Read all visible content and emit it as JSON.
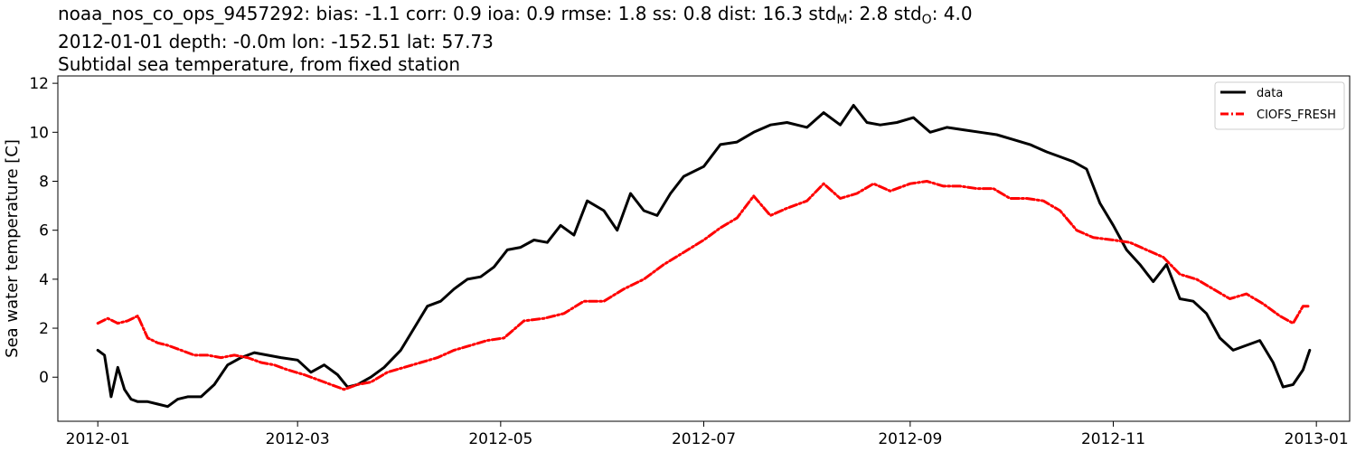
{
  "title": {
    "line1_prefix": "noaa_nos_co_ops_9457292: bias: -1.1  corr: 0.9  ioa: 0.9  rmse: 1.8  ss: 0.8  dist: 16.3  std",
    "line1_sub_m": "M",
    "line1_mid": ": 2.8  std",
    "line1_sub_o": "O",
    "line1_end": ": 4.0",
    "line2": "2012-01-01 depth: -0.0m lon: -152.51 lat: 57.73",
    "line3": "Subtidal sea temperature, from fixed station"
  },
  "chart_data": {
    "type": "line",
    "ylabel": "Sea water temperature [C]",
    "xlabel": "",
    "xlim": [
      "2011-12-20",
      "2013-01-11"
    ],
    "ylim": [
      -1.8,
      12.3
    ],
    "x_ticks": [
      "2012-01",
      "2012-03",
      "2012-05",
      "2012-07",
      "2012-09",
      "2012-11",
      "2013-01"
    ],
    "y_ticks": [
      0,
      2,
      4,
      6,
      8,
      10,
      12
    ],
    "legend_position": "top-right",
    "grid": false,
    "series": [
      {
        "name": "data",
        "color": "#000000",
        "style": "solid",
        "x": [
          "2012-01-01",
          "2012-01-03",
          "2012-01-05",
          "2012-01-07",
          "2012-01-09",
          "2012-01-11",
          "2012-01-13",
          "2012-01-16",
          "2012-01-19",
          "2012-01-22",
          "2012-01-25",
          "2012-01-28",
          "2012-02-01",
          "2012-02-05",
          "2012-02-09",
          "2012-02-13",
          "2012-02-17",
          "2012-02-21",
          "2012-02-25",
          "2012-03-01",
          "2012-03-05",
          "2012-03-09",
          "2012-03-13",
          "2012-03-16",
          "2012-03-19",
          "2012-03-23",
          "2012-03-27",
          "2012-04-01",
          "2012-04-05",
          "2012-04-09",
          "2012-04-13",
          "2012-04-17",
          "2012-04-21",
          "2012-04-25",
          "2012-04-29",
          "2012-05-03",
          "2012-05-07",
          "2012-05-11",
          "2012-05-15",
          "2012-05-19",
          "2012-05-23",
          "2012-05-27",
          "2012-06-01",
          "2012-06-05",
          "2012-06-09",
          "2012-06-13",
          "2012-06-17",
          "2012-06-21",
          "2012-06-25",
          "2012-07-01",
          "2012-07-06",
          "2012-07-11",
          "2012-07-16",
          "2012-07-21",
          "2012-07-26",
          "2012-08-01",
          "2012-08-06",
          "2012-08-11",
          "2012-08-15",
          "2012-08-19",
          "2012-08-23",
          "2012-08-28",
          "2012-09-02",
          "2012-09-07",
          "2012-09-12",
          "2012-09-17",
          "2012-09-22",
          "2012-09-27",
          "2012-10-02",
          "2012-10-07",
          "2012-10-12",
          "2012-10-16",
          "2012-10-20",
          "2012-10-24",
          "2012-10-28",
          "2012-11-01",
          "2012-11-05",
          "2012-11-09",
          "2012-11-13",
          "2012-11-17",
          "2012-11-21",
          "2012-11-25",
          "2012-11-29",
          "2012-12-03",
          "2012-12-07",
          "2012-12-11",
          "2012-12-15",
          "2012-12-19",
          "2012-12-22",
          "2012-12-25",
          "2012-12-28",
          "2012-12-30"
        ],
        "values": [
          1.1,
          0.9,
          -0.8,
          0.4,
          -0.5,
          -0.9,
          -1.0,
          -1.0,
          -1.1,
          -1.2,
          -0.9,
          -0.8,
          -0.8,
          -0.3,
          0.5,
          0.8,
          1.0,
          0.9,
          0.8,
          0.7,
          0.2,
          0.5,
          0.1,
          -0.4,
          -0.3,
          0.0,
          0.4,
          1.1,
          2.0,
          2.9,
          3.1,
          3.6,
          4.0,
          4.1,
          4.5,
          5.2,
          5.3,
          5.6,
          5.5,
          6.2,
          5.8,
          7.2,
          6.8,
          6.0,
          7.5,
          6.8,
          6.6,
          7.5,
          8.2,
          8.6,
          9.5,
          9.6,
          10.0,
          10.3,
          10.4,
          10.2,
          10.8,
          10.3,
          11.1,
          10.4,
          10.3,
          10.4,
          10.6,
          10.0,
          10.2,
          10.1,
          10.0,
          9.9,
          9.7,
          9.5,
          9.2,
          9.0,
          8.8,
          8.5,
          7.1,
          6.2,
          5.2,
          4.6,
          3.9,
          4.6,
          3.2,
          3.1,
          2.6,
          1.6,
          1.1,
          1.3,
          1.5,
          0.6,
          -0.4,
          -0.3,
          0.3,
          1.1
        ]
      },
      {
        "name": "CIOFS_FRESH",
        "color": "#ff0000",
        "style": "dashdot",
        "x": [
          "2012-01-01",
          "2012-01-04",
          "2012-01-07",
          "2012-01-10",
          "2012-01-13",
          "2012-01-16",
          "2012-01-19",
          "2012-01-22",
          "2012-01-26",
          "2012-01-30",
          "2012-02-03",
          "2012-02-07",
          "2012-02-11",
          "2012-02-15",
          "2012-02-19",
          "2012-02-23",
          "2012-02-27",
          "2012-03-03",
          "2012-03-07",
          "2012-03-11",
          "2012-03-15",
          "2012-03-19",
          "2012-03-23",
          "2012-03-28",
          "2012-04-02",
          "2012-04-07",
          "2012-04-12",
          "2012-04-17",
          "2012-04-22",
          "2012-04-27",
          "2012-05-02",
          "2012-05-08",
          "2012-05-14",
          "2012-05-20",
          "2012-05-26",
          "2012-06-01",
          "2012-06-07",
          "2012-06-13",
          "2012-06-19",
          "2012-06-25",
          "2012-07-01",
          "2012-07-06",
          "2012-07-11",
          "2012-07-16",
          "2012-07-21",
          "2012-07-26",
          "2012-08-01",
          "2012-08-06",
          "2012-08-11",
          "2012-08-16",
          "2012-08-21",
          "2012-08-26",
          "2012-09-01",
          "2012-09-06",
          "2012-09-11",
          "2012-09-16",
          "2012-09-21",
          "2012-09-26",
          "2012-10-01",
          "2012-10-06",
          "2012-10-11",
          "2012-10-16",
          "2012-10-21",
          "2012-10-26",
          "2012-11-01",
          "2012-11-06",
          "2012-11-11",
          "2012-11-16",
          "2012-11-21",
          "2012-11-26",
          "2012-12-01",
          "2012-12-06",
          "2012-12-11",
          "2012-12-16",
          "2012-12-21",
          "2012-12-25",
          "2012-12-28",
          "2012-12-30"
        ],
        "values": [
          2.2,
          2.4,
          2.2,
          2.3,
          2.5,
          1.6,
          1.4,
          1.3,
          1.1,
          0.9,
          0.9,
          0.8,
          0.9,
          0.8,
          0.6,
          0.5,
          0.3,
          0.1,
          -0.1,
          -0.3,
          -0.5,
          -0.3,
          -0.2,
          0.2,
          0.4,
          0.6,
          0.8,
          1.1,
          1.3,
          1.5,
          1.6,
          2.3,
          2.4,
          2.6,
          3.1,
          3.1,
          3.6,
          4.0,
          4.6,
          5.1,
          5.6,
          6.1,
          6.5,
          7.4,
          6.6,
          6.9,
          7.2,
          7.9,
          7.3,
          7.5,
          7.9,
          7.6,
          7.9,
          8.0,
          7.8,
          7.8,
          7.7,
          7.7,
          7.3,
          7.3,
          7.2,
          6.8,
          6.0,
          5.7,
          5.6,
          5.5,
          5.2,
          4.9,
          4.2,
          4.0,
          3.6,
          3.2,
          3.4,
          3.0,
          2.5,
          2.2,
          2.9,
          2.9
        ]
      }
    ]
  }
}
